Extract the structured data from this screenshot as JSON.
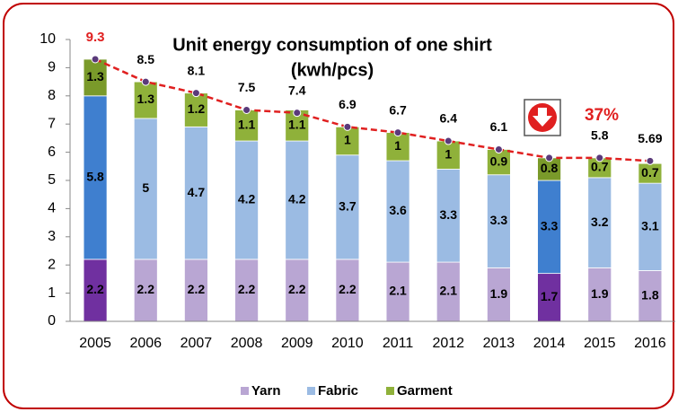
{
  "chart_data": {
    "type": "bar",
    "title": "Unit energy consumption of one shirt",
    "subtitle": "(kwh/pcs)",
    "annotation": "37%",
    "categories": [
      "2005",
      "2006",
      "2007",
      "2008",
      "2009",
      "2010",
      "2011",
      "2012",
      "2013",
      "2014",
      "2015",
      "2016"
    ],
    "stacked": true,
    "highlight": [
      0,
      9
    ],
    "series": [
      {
        "name": "Yarn",
        "color": "#b9a6d3",
        "highlight_color": "#7030a0",
        "values": [
          2.2,
          2.2,
          2.2,
          2.2,
          2.2,
          2.2,
          2.1,
          2.1,
          1.9,
          1.7,
          1.9,
          1.8
        ]
      },
      {
        "name": "Fabric",
        "color": "#9bbbe3",
        "highlight_color": "#3f7fcf",
        "values": [
          5.8,
          5,
          4.7,
          4.2,
          4.2,
          3.7,
          3.6,
          3.3,
          3.3,
          3.3,
          3.2,
          3.1
        ]
      },
      {
        "name": "Garment",
        "color": "#8fb13a",
        "highlight_color": "#7a9a2a",
        "values": [
          1.3,
          1.3,
          1.2,
          1.1,
          1.1,
          1,
          1,
          1,
          0.9,
          0.8,
          0.7,
          0.7
        ]
      }
    ],
    "totals": {
      "color": "#e02020",
      "marker_color": "#5a3a7a",
      "values": [
        9.3,
        8.5,
        8.1,
        7.5,
        7.4,
        6.9,
        6.7,
        6.4,
        6.1,
        5.8,
        5.8,
        5.69
      ],
      "value_labels": [
        "9.3",
        "8.5",
        "8.1",
        "7.5",
        "7.4",
        "6.9",
        "6.7",
        "6.4",
        "6.1",
        null,
        "5.8",
        "5.69"
      ]
    },
    "ylim": [
      0,
      10
    ],
    "yticks": [
      0,
      1,
      2,
      3,
      4,
      5,
      6,
      7,
      8,
      9,
      10
    ],
    "grid": false,
    "legend": "bottom"
  }
}
